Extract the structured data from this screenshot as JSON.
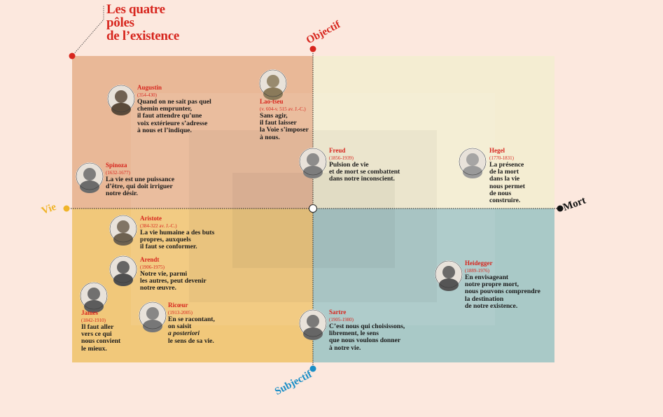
{
  "title": {
    "lines": [
      "Les quatre",
      "pôles",
      "de l’existence"
    ]
  },
  "axes": {
    "top": "Objectif",
    "bottom": "Subjectif",
    "left": "Vie",
    "right": "Mort"
  },
  "philosophers": [
    {
      "name": "Augustin",
      "dates": "(354-430)",
      "quote": [
        "Quand on ne sait pas quel",
        "chemin emprunter,",
        "il faut attendre qu’une",
        "voix extérieure s’adresse",
        "à nous et l’indique."
      ]
    },
    {
      "name": "Lao-tseu",
      "dates": "(v. 604-v. 515 av. J.-C.)",
      "quote": [
        "Sans agir,",
        "il faut laisser",
        "la Voie s’imposer",
        "à nous."
      ]
    },
    {
      "name": "Spinoza",
      "dates": "(1632-1677)",
      "quote": [
        "La vie est une puissance",
        "d’être, qui doit irriguer",
        "notre désir."
      ]
    },
    {
      "name": "Freud",
      "dates": "(1856-1939)",
      "quote": [
        "Pulsion de vie",
        "et de mort se combattent",
        "dans notre inconscient."
      ]
    },
    {
      "name": "Hegel",
      "dates": "(1770-1831)",
      "quote": [
        "La présence",
        "de la mort",
        "dans la vie",
        "nous permet",
        "de nous",
        "construire."
      ]
    },
    {
      "name": "Aristote",
      "dates": "(384-322 av. J.-C.)",
      "quote": [
        "La vie humaine a des buts",
        "propres, auxquels",
        "il faut se conformer."
      ]
    },
    {
      "name": "Arendt",
      "dates": "(1906-1975)",
      "quote": [
        "Notre vie, parmi",
        "les autres, peut devenir",
        "notre œuvre."
      ]
    },
    {
      "name": "James",
      "dates": "(1842-1910)",
      "quote": [
        "Il faut aller",
        "vers ce qui",
        "nous convient",
        "le mieux."
      ]
    },
    {
      "name": "Ricœur",
      "dates": "(1913-2005)",
      "quote": [
        "En se racontant,",
        "on saisit",
        "a posteriori",
        "le sens de sa vie."
      ]
    },
    {
      "name": "Heidegger",
      "dates": "(1889-1976)",
      "quote": [
        "En envisageant",
        "notre propre mort,",
        "nous pouvons comprendre",
        "la destination",
        "de notre existence."
      ]
    },
    {
      "name": "Sartre",
      "dates": "(1905-1980)",
      "quote": [
        "C’est nous qui choisissons,",
        "librement, le sens",
        "que nous voulons donner",
        "à notre vie."
      ]
    }
  ]
}
